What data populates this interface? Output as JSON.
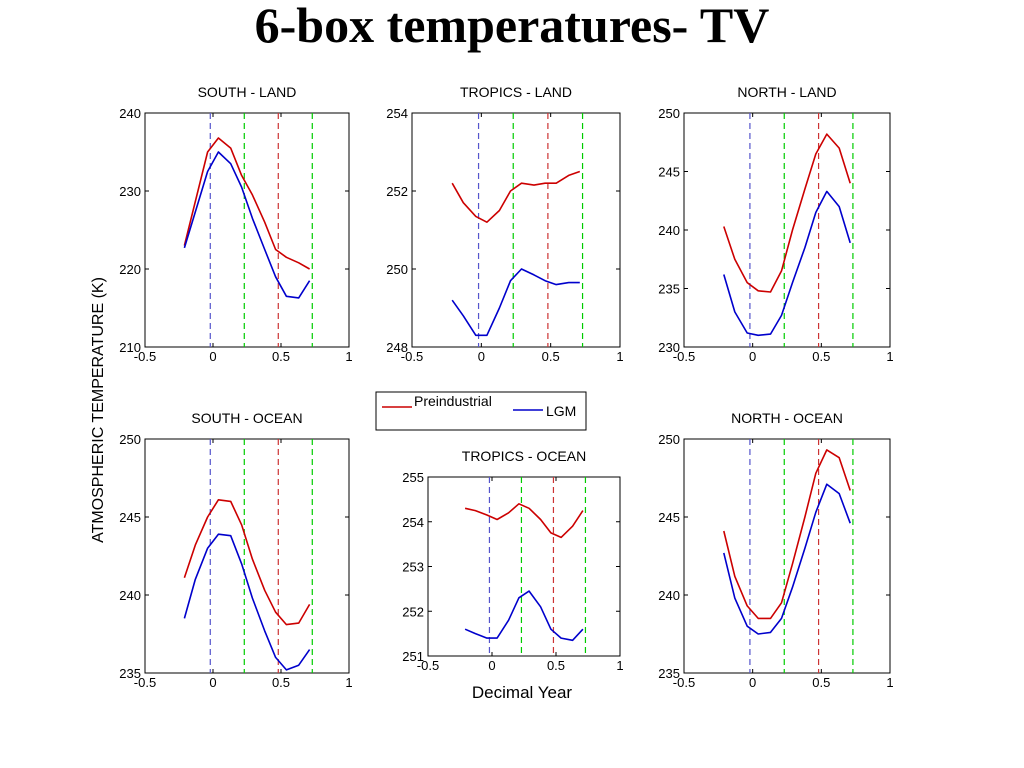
{
  "slide": {
    "title": "6-box temperatures- TV"
  },
  "figure": {
    "ylabel": "ATMOSPHERIC TEMPERATURE (K)",
    "xlabel": "Decimal Year"
  },
  "legend": {
    "entries": [
      {
        "label": "Preindustrial",
        "color": "#cc0000"
      },
      {
        "label": "LGM",
        "color": "#0000cc"
      }
    ]
  },
  "colors": {
    "preindustrial": "#cc0000",
    "lgm": "#0000cc",
    "vline_blue": "#5555cc",
    "vline_green": "#00cc00",
    "vline_red": "#cc3333"
  },
  "vertical_lines": [
    {
      "x": -0.02,
      "color": "vline_blue"
    },
    {
      "x": 0.23,
      "color": "vline_green"
    },
    {
      "x": 0.48,
      "color": "vline_red"
    },
    {
      "x": 0.73,
      "color": "vline_green"
    }
  ],
  "chart_data": [
    {
      "type": "line",
      "title": "SOUTH - LAND",
      "xlim": [
        -0.5,
        1
      ],
      "ylim": [
        210,
        240
      ],
      "xticks": [
        -0.5,
        0,
        0.5,
        1
      ],
      "yticks": [
        210,
        220,
        230,
        240
      ],
      "xtick_labels": [
        "-0.5",
        "0",
        "0.5",
        "1"
      ],
      "ytick_labels": [
        "210",
        "220",
        "230",
        "240"
      ],
      "series": [
        {
          "name": "Preindustrial",
          "color": "preindustrial",
          "x": [
            -0.21,
            -0.04,
            0.04,
            0.13,
            0.21,
            0.29,
            0.38,
            0.46,
            0.54,
            0.63,
            0.71
          ],
          "y": [
            223,
            235,
            236.8,
            235.5,
            232,
            229.5,
            226,
            222.5,
            221.5,
            220.8,
            220
          ]
        },
        {
          "name": "LGM",
          "color": "lgm",
          "x": [
            -0.21,
            -0.04,
            0.04,
            0.13,
            0.21,
            0.29,
            0.38,
            0.46,
            0.54,
            0.63,
            0.71
          ],
          "y": [
            222.7,
            232.5,
            235,
            233.5,
            230.5,
            226.5,
            222.5,
            219,
            216.5,
            216.3,
            218.5
          ]
        }
      ]
    },
    {
      "type": "line",
      "title": "TROPICS - LAND",
      "xlim": [
        -0.5,
        1
      ],
      "ylim": [
        248,
        254
      ],
      "xticks": [
        -0.5,
        0,
        0.5,
        1
      ],
      "yticks": [
        248,
        250,
        252,
        254
      ],
      "xtick_labels": [
        "-0.5",
        "0",
        "0.5",
        "1"
      ],
      "ytick_labels": [
        "248",
        "250",
        "252",
        "254"
      ],
      "series": [
        {
          "name": "Preindustrial",
          "color": "preindustrial",
          "x": [
            -0.21,
            -0.13,
            -0.04,
            0.04,
            0.13,
            0.21,
            0.29,
            0.38,
            0.46,
            0.54,
            0.63,
            0.71
          ],
          "y": [
            252.2,
            251.7,
            251.35,
            251.2,
            251.5,
            252.0,
            252.2,
            252.15,
            252.2,
            252.2,
            252.4,
            252.5
          ]
        },
        {
          "name": "LGM",
          "color": "lgm",
          "x": [
            -0.21,
            -0.13,
            -0.04,
            0.04,
            0.13,
            0.21,
            0.29,
            0.38,
            0.46,
            0.54,
            0.63,
            0.71
          ],
          "y": [
            249.2,
            248.8,
            248.3,
            248.3,
            249.0,
            249.7,
            250.0,
            249.85,
            249.7,
            249.6,
            249.65,
            249.65
          ]
        }
      ]
    },
    {
      "type": "line",
      "title": "NORTH - LAND",
      "xlim": [
        -0.5,
        1
      ],
      "ylim": [
        230,
        250
      ],
      "xticks": [
        -0.5,
        0,
        0.5,
        1
      ],
      "yticks": [
        230,
        235,
        240,
        245,
        250
      ],
      "xtick_labels": [
        "-0.5",
        "0",
        "0.5",
        "1"
      ],
      "ytick_labels": [
        "230",
        "235",
        "240",
        "245",
        "250"
      ],
      "series": [
        {
          "name": "Preindustrial",
          "color": "preindustrial",
          "x": [
            -0.21,
            -0.13,
            -0.04,
            0.04,
            0.13,
            0.21,
            0.29,
            0.38,
            0.46,
            0.54,
            0.63,
            0.71
          ],
          "y": [
            240.3,
            237.5,
            235.5,
            234.8,
            234.7,
            236.5,
            240,
            243.5,
            246.5,
            248.2,
            247,
            244
          ]
        },
        {
          "name": "LGM",
          "color": "lgm",
          "x": [
            -0.21,
            -0.13,
            -0.04,
            0.04,
            0.13,
            0.21,
            0.29,
            0.38,
            0.46,
            0.54,
            0.63,
            0.71
          ],
          "y": [
            236.2,
            233,
            231.2,
            231,
            231.1,
            232.7,
            235.5,
            238.5,
            241.5,
            243.3,
            242,
            238.9
          ]
        }
      ]
    },
    {
      "type": "line",
      "title": "SOUTH - OCEAN",
      "xlim": [
        -0.5,
        1
      ],
      "ylim": [
        235,
        250
      ],
      "xticks": [
        -0.5,
        0,
        0.5,
        1
      ],
      "yticks": [
        235,
        240,
        245,
        250
      ],
      "xtick_labels": [
        "-0.5",
        "0",
        "0.5",
        "1"
      ],
      "ytick_labels": [
        "235",
        "240",
        "245",
        "250"
      ],
      "series": [
        {
          "name": "Preindustrial",
          "color": "preindustrial",
          "x": [
            -0.21,
            -0.13,
            -0.04,
            0.04,
            0.13,
            0.21,
            0.29,
            0.38,
            0.46,
            0.54,
            0.63,
            0.71
          ],
          "y": [
            241.1,
            243.2,
            245,
            246.1,
            246,
            244.5,
            242.3,
            240.3,
            238.9,
            238.1,
            238.2,
            239.4
          ]
        },
        {
          "name": "LGM",
          "color": "lgm",
          "x": [
            -0.21,
            -0.13,
            -0.04,
            0.04,
            0.13,
            0.21,
            0.29,
            0.38,
            0.46,
            0.54,
            0.63,
            0.71
          ],
          "y": [
            238.5,
            241,
            243,
            243.9,
            243.8,
            242,
            239.8,
            237.7,
            236,
            235.2,
            235.5,
            236.5
          ]
        }
      ]
    },
    {
      "type": "line",
      "title": "TROPICS - OCEAN",
      "xlim": [
        -0.5,
        1
      ],
      "ylim": [
        251,
        255
      ],
      "xticks": [
        -0.5,
        0,
        0.5,
        1
      ],
      "yticks": [
        251,
        252,
        253,
        254,
        255
      ],
      "xtick_labels": [
        "-0.5",
        "0",
        "0.5",
        "1"
      ],
      "ytick_labels": [
        "251",
        "252",
        "253",
        "254",
        "255"
      ],
      "series": [
        {
          "name": "Preindustrial",
          "color": "preindustrial",
          "x": [
            -0.21,
            -0.13,
            -0.04,
            0.04,
            0.13,
            0.21,
            0.29,
            0.38,
            0.46,
            0.54,
            0.63,
            0.71
          ],
          "y": [
            254.3,
            254.25,
            254.15,
            254.05,
            254.2,
            254.4,
            254.3,
            254.05,
            253.75,
            253.65,
            253.9,
            254.25
          ]
        },
        {
          "name": "LGM",
          "color": "lgm",
          "x": [
            -0.21,
            -0.13,
            -0.04,
            0.04,
            0.13,
            0.21,
            0.29,
            0.38,
            0.46,
            0.54,
            0.63,
            0.71
          ],
          "y": [
            251.6,
            251.5,
            251.4,
            251.4,
            251.8,
            252.3,
            252.45,
            252.1,
            251.6,
            251.4,
            251.35,
            251.6
          ]
        }
      ]
    },
    {
      "type": "line",
      "title": "NORTH - OCEAN",
      "xlim": [
        -0.5,
        1
      ],
      "ylim": [
        235,
        250
      ],
      "xticks": [
        -0.5,
        0,
        0.5,
        1
      ],
      "yticks": [
        235,
        240,
        245,
        250
      ],
      "xtick_labels": [
        "-0.5",
        "0",
        "0.5",
        "1"
      ],
      "ytick_labels": [
        "235",
        "240",
        "245",
        "250"
      ],
      "series": [
        {
          "name": "Preindustrial",
          "color": "preindustrial",
          "x": [
            -0.21,
            -0.13,
            -0.04,
            0.04,
            0.13,
            0.21,
            0.29,
            0.38,
            0.46,
            0.54,
            0.63,
            0.71
          ],
          "y": [
            244.1,
            241.2,
            239.3,
            238.5,
            238.5,
            239.5,
            242,
            245,
            247.8,
            249.3,
            248.8,
            246.7
          ]
        },
        {
          "name": "LGM",
          "color": "lgm",
          "x": [
            -0.21,
            -0.13,
            -0.04,
            0.04,
            0.13,
            0.21,
            0.29,
            0.38,
            0.46,
            0.54,
            0.63,
            0.71
          ],
          "y": [
            242.7,
            239.8,
            238,
            237.5,
            237.6,
            238.5,
            240.5,
            243,
            245.3,
            247.1,
            246.5,
            244.6
          ]
        }
      ]
    }
  ]
}
